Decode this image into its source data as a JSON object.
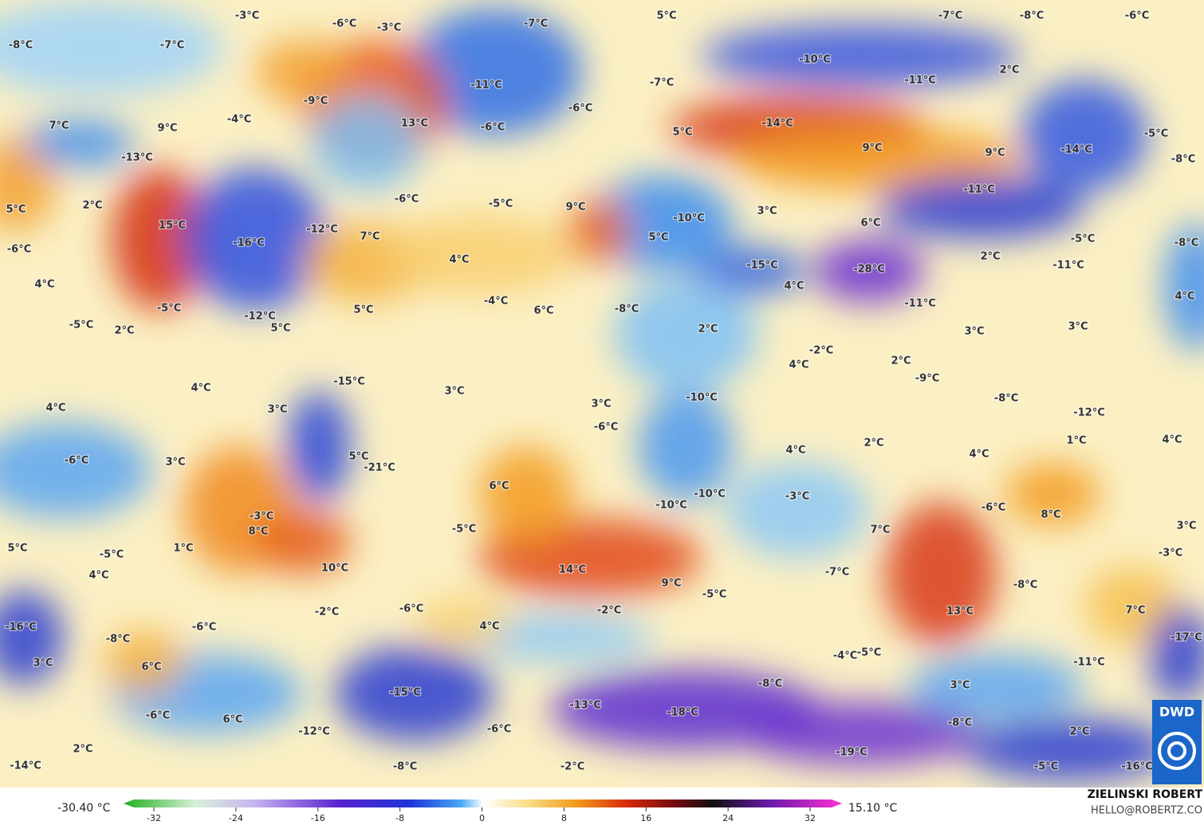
{
  "map": {
    "labels": [
      "-3°C",
      "-6°C",
      "-3°C",
      "-7°C",
      "5°C",
      "-7°C",
      "-8°C",
      "-6°C",
      "-8°C",
      "-7°C",
      "-10°C",
      "-11°C",
      "-7°C",
      "-11°C",
      "2°C",
      "-9°C",
      "-6°C",
      "-4°C",
      "13°C",
      "-14°C",
      "-5°C",
      "7°C",
      "9°C",
      "-6°C",
      "5°C",
      "9°C",
      "9°C",
      "-14°C",
      "-13°C",
      "-8°C",
      "-11°C",
      "5°C",
      "2°C",
      "-6°C",
      "-5°C",
      "9°C",
      "-10°C",
      "3°C",
      "6°C",
      "15°C",
      "-16°C",
      "-12°C",
      "7°C",
      "5°C",
      "-5°C",
      "-8°C",
      "-6°C",
      "4°C",
      "-15°C",
      "-28°C",
      "2°C",
      "-11°C",
      "4°C",
      "4°C",
      "-5°C",
      "5°C",
      "-4°C",
      "6°C",
      "-8°C",
      "-11°C",
      "4°C",
      "-5°C",
      "2°C",
      "-12°C",
      "5°C",
      "2°C",
      "3°C",
      "3°C",
      "-2°C",
      "4°C",
      "2°C",
      "-9°C",
      "-15°C",
      "4°C",
      "3°C",
      "-10°C",
      "-8°C",
      "4°C",
      "3°C",
      "3°C",
      "-6°C",
      "-12°C",
      "-6°C",
      "3°C",
      "5°C",
      "2°C",
      "4°C",
      "4°C",
      "1°C",
      "4°C",
      "-21°C",
      "6°C",
      "-10°C",
      "-10°C",
      "-3°C",
      "-6°C",
      "8°C",
      "-3°C",
      "8°C",
      "-5°C",
      "7°C",
      "3°C",
      "5°C",
      "-5°C",
      "1°C",
      "-3°C",
      "4°C",
      "10°C",
      "14°C",
      "-7°C",
      "9°C",
      "-8°C",
      "-5°C",
      "-2°C",
      "-6°C",
      "-2°C",
      "13°C",
      "7°C",
      "-16°C",
      "-6°C",
      "4°C",
      "-17°C",
      "-8°C",
      "-4°C",
      "-5°C",
      "-11°C",
      "3°C",
      "6°C",
      "-8°C",
      "3°C",
      "-15°C",
      "-13°C",
      "-18°C",
      "-6°C",
      "6°C",
      "-8°C",
      "-12°C",
      "-6°C",
      "2°C",
      "2°C",
      "-19°C",
      "-14°C",
      "-8°C",
      "-2°C",
      "-5°C",
      "-16°C"
    ]
  },
  "colorbar": {
    "min_label": "-30.40 °C",
    "max_label": "15.10 °C",
    "ticks": [
      -32,
      -24,
      -16,
      -8,
      0,
      8,
      16,
      24,
      32
    ]
  },
  "credit": {
    "author": "ZIELINSKI ROBERT",
    "email": "HELLO@ROBERTZ.CO"
  },
  "logo": {
    "text": "DWD"
  }
}
